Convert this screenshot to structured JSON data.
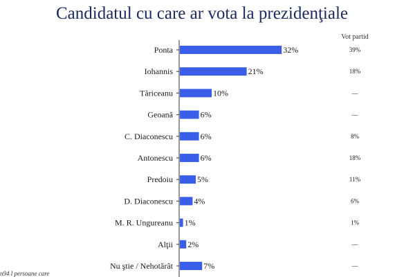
{
  "chart_data": {
    "type": "bar",
    "orientation": "horizontal",
    "title": "Candidatul cu care ar vota la prezidenţiale",
    "categories": [
      "Ponta",
      "Iohannis",
      "Tăriceanu",
      "Geoană",
      "C. Diaconescu",
      "Antonescu",
      "Predoiu",
      "D. Diaconescu",
      "M. R. Ungureanu",
      "Alţii",
      "Nu ştie / Nehotărât"
    ],
    "values": [
      32,
      21,
      10,
      6,
      6,
      6,
      5,
      4,
      1,
      2,
      7
    ],
    "value_labels": [
      "32%",
      "21%",
      "10%",
      "6%",
      "6%",
      "6%",
      "5%",
      "4%",
      "1%",
      "2%",
      "7%"
    ],
    "party_vote_header": "Vot partid",
    "party_vote": [
      "39%",
      "18%",
      "—",
      "—",
      "8%",
      "18%",
      "11%",
      "6%",
      "1%",
      "—",
      "—"
    ],
    "bar_color": "#3a5ee8",
    "axis_color": "#333333"
  },
  "footnote": "n94 l persoane care"
}
